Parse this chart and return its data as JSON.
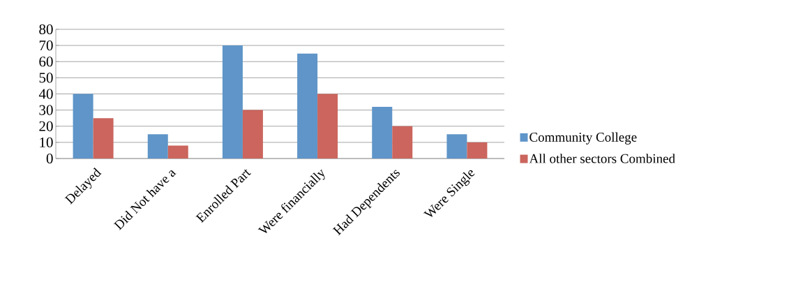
{
  "chart_data": {
    "type": "bar",
    "categories": [
      "Delayed",
      "Did Not have a",
      "Enrolled Part",
      "Were financially",
      "Had Dependents",
      "Were Single"
    ],
    "series": [
      {
        "name": "Community College",
        "color": "#5f95c8",
        "values": [
          40,
          15,
          70,
          65,
          32,
          15
        ]
      },
      {
        "name": "All other sectors Combined",
        "color": "#cb655d",
        "values": [
          25,
          8,
          30,
          40,
          20,
          10
        ]
      }
    ],
    "ylim": [
      0,
      80
    ],
    "yticks": [
      0,
      10,
      20,
      30,
      40,
      50,
      60,
      70,
      80
    ],
    "grid": "y",
    "legend": "right"
  }
}
